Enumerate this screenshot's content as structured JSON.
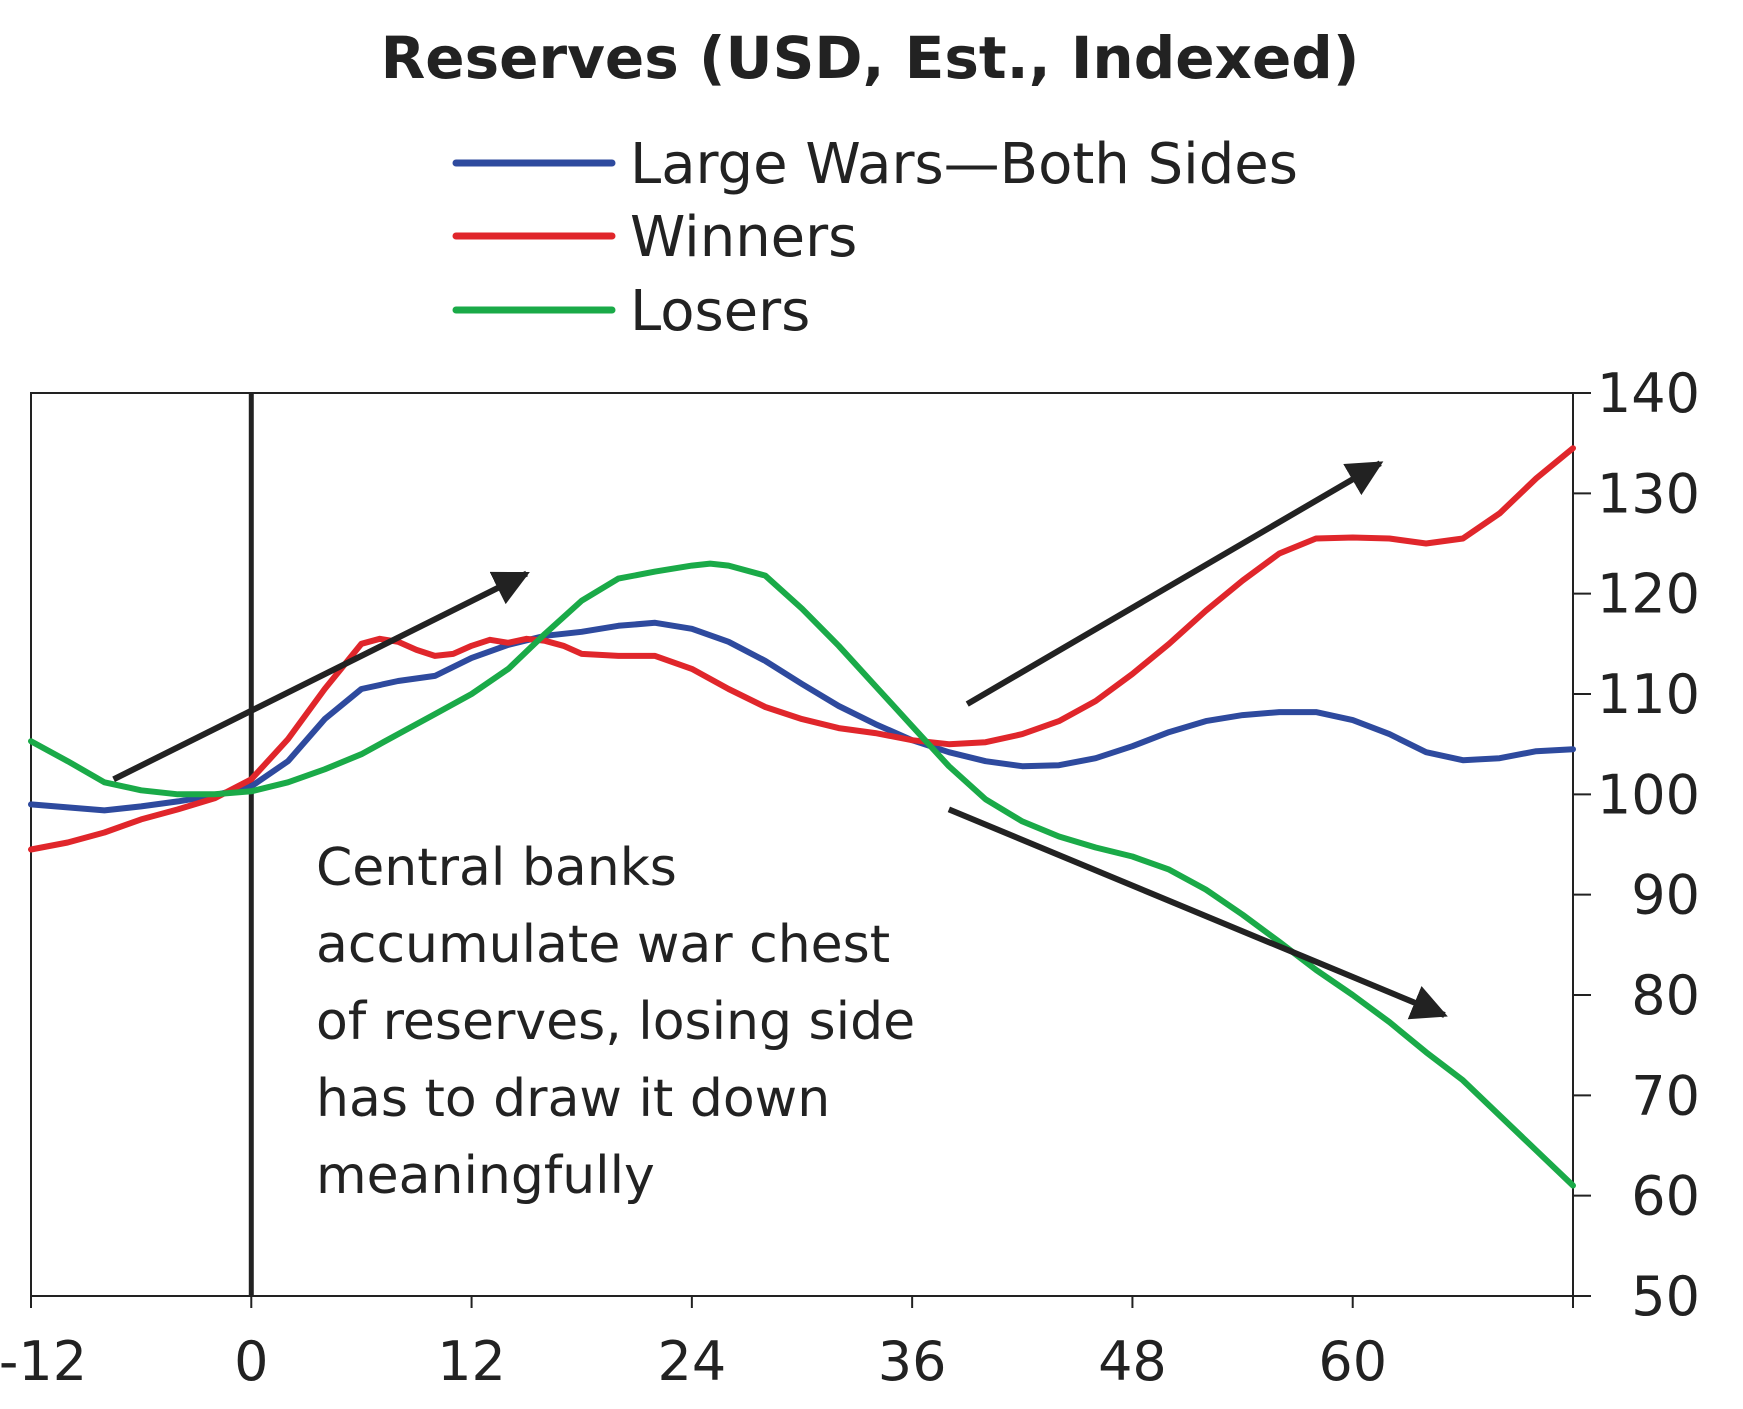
{
  "chart_data": {
    "type": "line",
    "title": "Reserves (USD, Est., Indexed)",
    "xlabel": "",
    "ylabel": "",
    "xlim": [
      -12,
      72
    ],
    "ylim": [
      50,
      140
    ],
    "xticks": [
      -12,
      0,
      12,
      24,
      36,
      48,
      60
    ],
    "yticks": [
      50,
      60,
      70,
      80,
      90,
      100,
      110,
      120,
      130,
      140
    ],
    "y_axis_side": "right",
    "grid": false,
    "legend_position": "top-center",
    "event_line_x": 0,
    "annotation": {
      "lines": [
        "Central banks",
        "accumulate war chest",
        "of reserves, losing side",
        "has to draw it down",
        "meaningfully"
      ]
    },
    "arrows": [
      {
        "from": [
          -7.5,
          101.5
        ],
        "to": [
          15,
          122
        ]
      },
      {
        "from": [
          39,
          109
        ],
        "to": [
          61.5,
          133
        ]
      },
      {
        "from": [
          38,
          98.5
        ],
        "to": [
          65,
          78
        ]
      }
    ],
    "series": [
      {
        "name": "Large Wars—Both Sides",
        "color": "#2e4a9e",
        "x": [
          -12,
          -10,
          -8,
          -6,
          -4,
          -2,
          0,
          2,
          4,
          6,
          8,
          10,
          12,
          14,
          16,
          18,
          20,
          22,
          24,
          26,
          28,
          30,
          32,
          34,
          36,
          38,
          40,
          42,
          44,
          46,
          48,
          50,
          52,
          54,
          56,
          58,
          60,
          62,
          64,
          66,
          68,
          70,
          72
        ],
        "y": [
          99,
          98.7,
          98.4,
          98.8,
          99.3,
          99.9,
          100.8,
          103.3,
          107.5,
          110.5,
          111.3,
          111.8,
          113.6,
          114.9,
          115.8,
          116.2,
          116.8,
          117.1,
          116.5,
          115.2,
          113.3,
          111,
          108.8,
          107,
          105.4,
          104.2,
          103.3,
          102.8,
          102.9,
          103.6,
          104.8,
          106.2,
          107.3,
          107.9,
          108.2,
          108.2,
          107.4,
          106,
          104.2,
          103.4,
          103.6,
          104.3,
          104.5
        ]
      },
      {
        "name": "Winners",
        "color": "#e0262b",
        "x": [
          -12,
          -10,
          -8,
          -6,
          -4,
          -2,
          0,
          2,
          4,
          6,
          7,
          8,
          9,
          10,
          11,
          12,
          13,
          14,
          15,
          16,
          17,
          18,
          20,
          22,
          24,
          26,
          28,
          30,
          32,
          34,
          36,
          38,
          40,
          42,
          44,
          46,
          48,
          50,
          52,
          54,
          56,
          58,
          60,
          62,
          64,
          66,
          68,
          70,
          72
        ],
        "y": [
          94.5,
          95.2,
          96.2,
          97.5,
          98.5,
          99.6,
          101.5,
          105.5,
          110.5,
          115,
          115.5,
          115.2,
          114.4,
          113.8,
          114,
          114.8,
          115.4,
          115.1,
          115.5,
          115.3,
          114.8,
          114,
          113.8,
          113.8,
          112.5,
          110.5,
          108.7,
          107.5,
          106.6,
          106.1,
          105.4,
          105,
          105.2,
          106,
          107.3,
          109.3,
          112,
          115,
          118.3,
          121.3,
          124,
          125.5,
          125.6,
          125.5,
          125,
          125.5,
          128,
          131.5,
          134.5
        ]
      },
      {
        "name": "Losers",
        "color": "#1aaa48",
        "x": [
          -12,
          -10,
          -8,
          -6,
          -4,
          -2,
          0,
          2,
          4,
          6,
          8,
          10,
          12,
          14,
          16,
          18,
          20,
          22,
          24,
          25,
          26,
          28,
          30,
          32,
          34,
          36,
          38,
          40,
          42,
          44,
          46,
          48,
          50,
          52,
          54,
          56,
          58,
          60,
          62,
          64,
          66,
          68,
          70,
          72
        ],
        "y": [
          105.3,
          103.3,
          101.2,
          100.4,
          100,
          100,
          100.3,
          101.2,
          102.5,
          104,
          106,
          108,
          110,
          112.5,
          116,
          119.3,
          121.5,
          122.2,
          122.8,
          123,
          122.8,
          121.8,
          118.5,
          114.8,
          110.8,
          106.8,
          102.8,
          99.5,
          97.3,
          95.8,
          94.7,
          93.8,
          92.5,
          90.5,
          88,
          85.3,
          82.5,
          80,
          77.3,
          74.3,
          71.5,
          68,
          64.5,
          61
        ]
      }
    ]
  }
}
